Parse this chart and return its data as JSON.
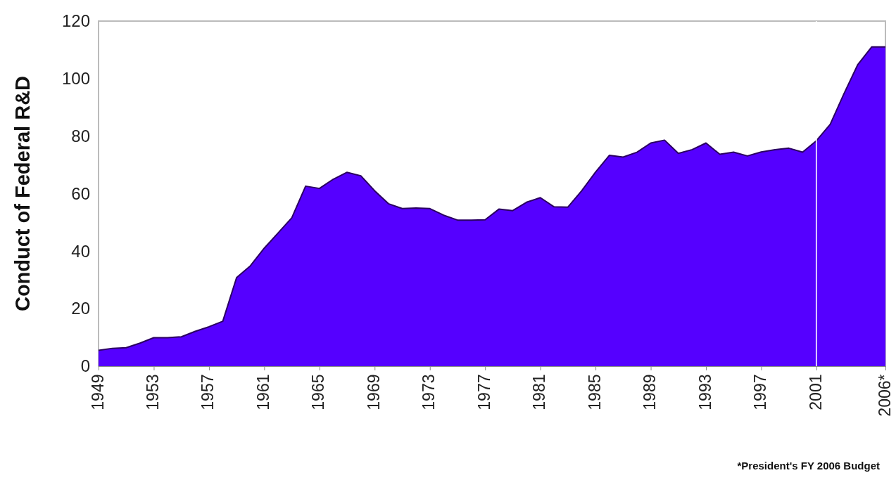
{
  "chart_data": {
    "type": "area",
    "ylabel": "Conduct of Federal R&D",
    "x": [
      1949,
      1950,
      1951,
      1952,
      1953,
      1954,
      1955,
      1956,
      1957,
      1958,
      1959,
      1960,
      1961,
      1962,
      1963,
      1964,
      1965,
      1966,
      1967,
      1968,
      1969,
      1970,
      1971,
      1972,
      1973,
      1974,
      1975,
      1976,
      1977,
      1978,
      1979,
      1980,
      1981,
      1982,
      1983,
      1984,
      1985,
      1986,
      1987,
      1988,
      1989,
      1990,
      1991,
      1992,
      1993,
      1994,
      1995,
      1996,
      1997,
      1998,
      1999,
      2000,
      2001,
      2002,
      2003,
      2004,
      2005,
      2006
    ],
    "series": [
      {
        "color": "#5500ff",
        "values": [
          5.5,
          6.2,
          6.4,
          8.0,
          9.9,
          9.9,
          10.2,
          12.1,
          13.7,
          15.6,
          30.8,
          34.9,
          41.0,
          46.3,
          51.6,
          62.6,
          61.8,
          65.0,
          67.4,
          66.2,
          61,
          56.5,
          54.8,
          55,
          54.8,
          52.5,
          50.8,
          50.8,
          50.9,
          54.6,
          54.1,
          57,
          58.6,
          55.4,
          55.3,
          61,
          67.5,
          73.3,
          72.7,
          74.4,
          77.6,
          78.6,
          74.0,
          75.3,
          77.6,
          73.7,
          74.4,
          73.1,
          74.5,
          75.3,
          75.8,
          74.4,
          78.4,
          84.1,
          94.8,
          104.9,
          111,
          111
        ]
      }
    ],
    "xlim": [
      1949,
      2006
    ],
    "xticks": [
      1949,
      1953,
      1957,
      1961,
      1965,
      1969,
      1973,
      1977,
      1981,
      1985,
      1989,
      1993,
      1997,
      2001,
      {
        "value": 2006,
        "label": "2006*"
      }
    ],
    "ylim": [
      0,
      120
    ],
    "yticks": [
      0,
      20,
      40,
      60,
      80,
      100,
      120
    ],
    "grid": false,
    "ref_lines": [
      {
        "axis": "x",
        "value": 2001,
        "color": "#ffffff"
      }
    ],
    "annotations": [
      "*President's FY 2006 Budget"
    ]
  }
}
